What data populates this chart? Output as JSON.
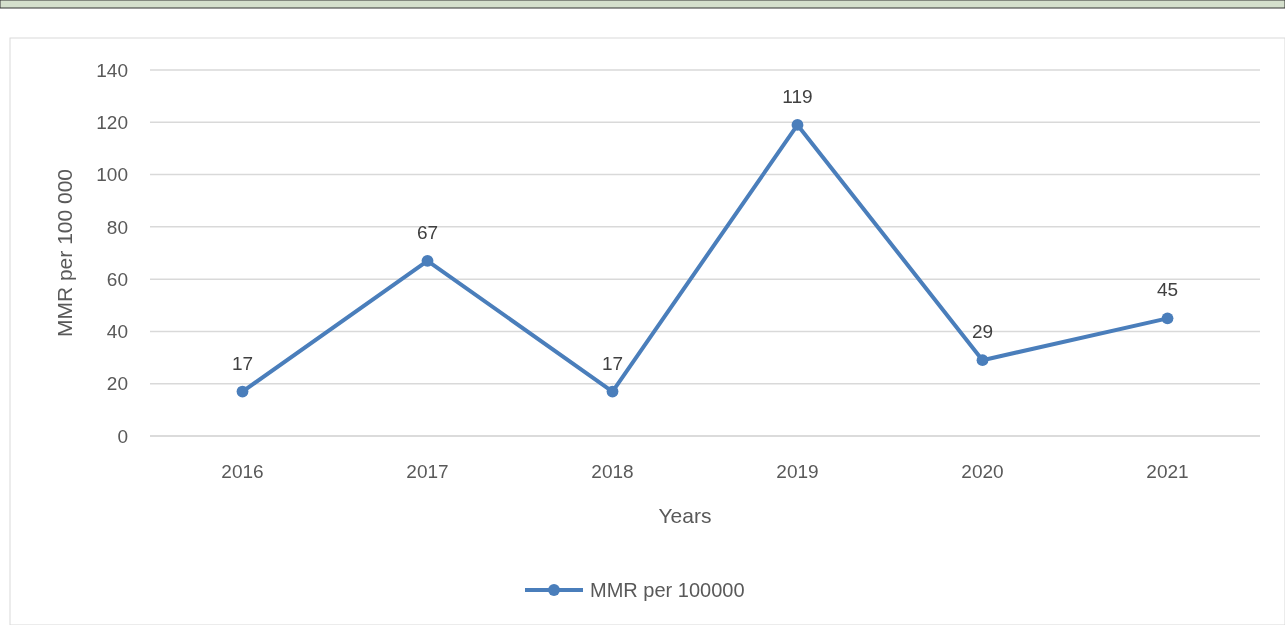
{
  "chart_data": {
    "type": "line",
    "xlabel": "Years",
    "ylabel": "MMR per 100 000",
    "categories": [
      "2016",
      "2017",
      "2018",
      "2019",
      "2020",
      "2021"
    ],
    "series": [
      {
        "name": "MMR per 100000",
        "color": "#4a7ebb",
        "values": [
          17,
          67,
          17,
          119,
          29,
          45
        ]
      }
    ],
    "ylim": [
      0,
      140
    ],
    "yticks": [
      0,
      20,
      40,
      60,
      80,
      100,
      120,
      140
    ],
    "grid": "y",
    "legend": "bottom",
    "marker": "circle",
    "data_labels": true
  }
}
